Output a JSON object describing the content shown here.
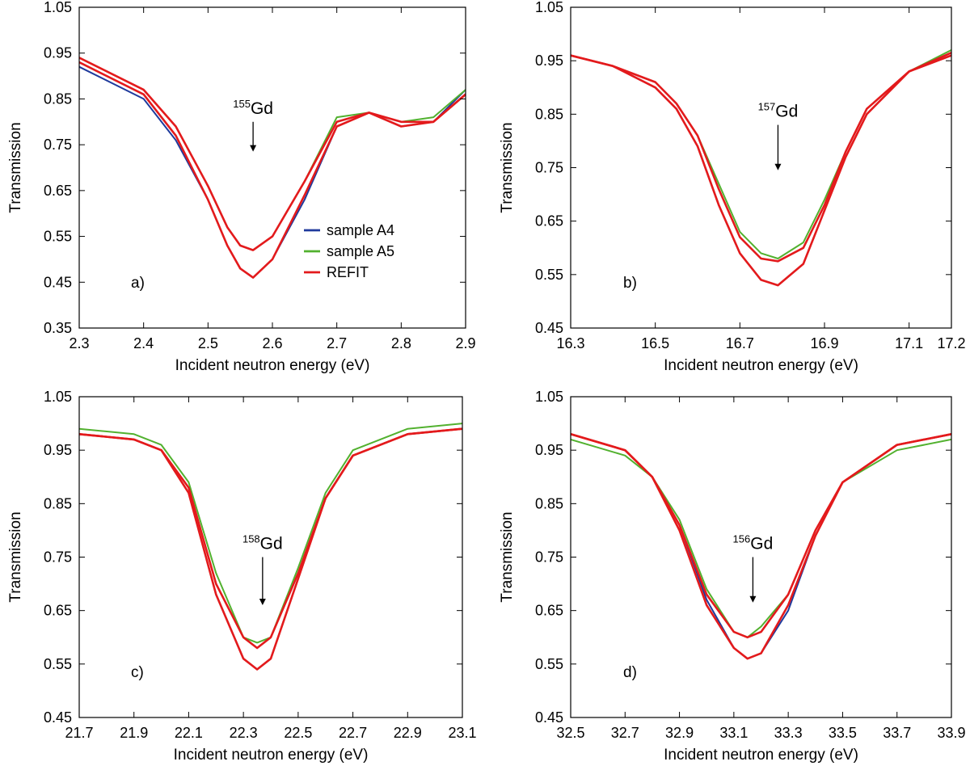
{
  "colors": {
    "a4": "#1f3a9c",
    "a5": "#52b12f",
    "refit": "#e31a1c",
    "axis": "#000000"
  },
  "legend": {
    "items": [
      {
        "label": "sample A4",
        "color": "#1f3a9c"
      },
      {
        "label": "sample A5",
        "color": "#52b12f"
      },
      {
        "label": "REFIT",
        "color": "#e31a1c"
      }
    ]
  },
  "chart_data": [
    {
      "type": "line",
      "panel_label": "a)",
      "xlabel": "Incident neutron energy (eV)",
      "ylabel": "Transmission",
      "xlim": [
        2.3,
        2.9
      ],
      "ylim": [
        0.35,
        1.05
      ],
      "xticks": [
        "2.3",
        "2.4",
        "2.5",
        "2.6",
        "2.7",
        "2.8",
        "2.9"
      ],
      "yticks": [
        "0.35",
        "0.45",
        "0.55",
        "0.65",
        "0.75",
        "0.85",
        "0.95",
        "1.05"
      ],
      "annotation": {
        "mass": "155",
        "element": "Gd",
        "x": 2.57,
        "y_top": 0.8,
        "y_bottom": 0.735
      },
      "legend": true,
      "series": [
        {
          "name": "sample A4",
          "x": [
            2.3,
            2.4,
            2.45,
            2.5,
            2.53,
            2.55,
            2.57,
            2.6,
            2.65,
            2.7,
            2.75,
            2.8,
            2.85,
            2.9
          ],
          "y": [
            0.92,
            0.85,
            0.76,
            0.63,
            0.53,
            0.48,
            0.46,
            0.5,
            0.63,
            0.79,
            0.82,
            0.79,
            0.8,
            0.87
          ]
        },
        {
          "name": "sample A5",
          "x": [
            2.3,
            2.4,
            2.45,
            2.5,
            2.53,
            2.55,
            2.57,
            2.6,
            2.65,
            2.7,
            2.75,
            2.8,
            2.85,
            2.9
          ],
          "y": [
            0.94,
            0.87,
            0.79,
            0.66,
            0.57,
            0.53,
            0.52,
            0.55,
            0.67,
            0.81,
            0.82,
            0.8,
            0.81,
            0.87
          ]
        },
        {
          "name": "REFIT",
          "x": [
            2.3,
            2.4,
            2.45,
            2.5,
            2.53,
            2.55,
            2.57,
            2.6,
            2.65,
            2.7,
            2.75,
            2.8,
            2.85,
            2.9
          ],
          "y": [
            0.93,
            0.86,
            0.77,
            0.63,
            0.53,
            0.48,
            0.46,
            0.5,
            0.64,
            0.79,
            0.82,
            0.79,
            0.8,
            0.86
          ]
        },
        {
          "name": "REFIT",
          "x": [
            2.3,
            2.4,
            2.45,
            2.5,
            2.53,
            2.55,
            2.57,
            2.6,
            2.65,
            2.7,
            2.75,
            2.8,
            2.85,
            2.9
          ],
          "y": [
            0.94,
            0.87,
            0.79,
            0.66,
            0.57,
            0.53,
            0.52,
            0.55,
            0.67,
            0.8,
            0.82,
            0.8,
            0.8,
            0.86
          ]
        }
      ]
    },
    {
      "type": "line",
      "panel_label": "b)",
      "xlabel": "Incident neutron energy (eV)",
      "ylabel": "Transmission",
      "xlim": [
        16.3,
        17.2
      ],
      "ylim": [
        0.45,
        1.05
      ],
      "xticks": [
        "16.3",
        "16.5",
        "16.7",
        "16.9",
        "17.1",
        "17.2"
      ],
      "yticks": [
        "0.45",
        "0.55",
        "0.65",
        "0.75",
        "0.85",
        "0.95",
        "1.05"
      ],
      "annotation": {
        "mass": "157",
        "element": "Gd",
        "x": 16.79,
        "y_top": 0.83,
        "y_bottom": 0.745
      },
      "legend": false,
      "series": [
        {
          "name": "sample A4",
          "x": [
            16.3,
            16.4,
            16.5,
            16.55,
            16.6,
            16.65,
            16.7,
            16.75,
            16.79,
            16.85,
            16.9,
            16.95,
            17.0,
            17.1,
            17.2
          ],
          "y": [
            0.96,
            0.94,
            0.9,
            0.86,
            0.79,
            0.68,
            0.59,
            0.54,
            0.53,
            0.57,
            0.67,
            0.77,
            0.85,
            0.93,
            0.96
          ]
        },
        {
          "name": "sample A5",
          "x": [
            16.3,
            16.4,
            16.5,
            16.55,
            16.6,
            16.65,
            16.7,
            16.75,
            16.79,
            16.85,
            16.9,
            16.95,
            17.0,
            17.1,
            17.2
          ],
          "y": [
            0.96,
            0.94,
            0.91,
            0.87,
            0.81,
            0.72,
            0.63,
            0.59,
            0.58,
            0.61,
            0.69,
            0.78,
            0.86,
            0.93,
            0.97
          ]
        },
        {
          "name": "REFIT",
          "x": [
            16.3,
            16.4,
            16.5,
            16.55,
            16.6,
            16.65,
            16.7,
            16.75,
            16.79,
            16.85,
            16.9,
            16.95,
            17.0,
            17.1,
            17.2
          ],
          "y": [
            0.96,
            0.94,
            0.9,
            0.86,
            0.79,
            0.68,
            0.59,
            0.54,
            0.53,
            0.57,
            0.67,
            0.77,
            0.85,
            0.93,
            0.96
          ]
        },
        {
          "name": "REFIT",
          "x": [
            16.3,
            16.4,
            16.5,
            16.55,
            16.6,
            16.65,
            16.7,
            16.75,
            16.79,
            16.85,
            16.9,
            16.95,
            17.0,
            17.1,
            17.2
          ],
          "y": [
            0.96,
            0.94,
            0.91,
            0.87,
            0.81,
            0.71,
            0.62,
            0.58,
            0.575,
            0.6,
            0.68,
            0.78,
            0.86,
            0.93,
            0.965
          ]
        }
      ]
    },
    {
      "type": "line",
      "panel_label": "c)",
      "xlabel": "Incident neutron energy (eV)",
      "ylabel": "Transmission",
      "xlim": [
        21.7,
        23.1
      ],
      "ylim": [
        0.45,
        1.05
      ],
      "xticks": [
        "21.7",
        "21.9",
        "22.1",
        "22.3",
        "22.5",
        "22.7",
        "22.9",
        "23.1"
      ],
      "yticks": [
        "0.45",
        "0.55",
        "0.65",
        "0.75",
        "0.85",
        "0.95",
        "1.05"
      ],
      "annotation": {
        "mass": "158",
        "element": "Gd",
        "x": 22.37,
        "y_top": 0.75,
        "y_bottom": 0.66
      },
      "legend": false,
      "series": [
        {
          "name": "sample A4",
          "x": [
            21.7,
            21.9,
            22.0,
            22.1,
            22.2,
            22.3,
            22.35,
            22.4,
            22.5,
            22.6,
            22.7,
            22.9,
            23.1
          ],
          "y": [
            0.98,
            0.97,
            0.95,
            0.87,
            0.68,
            0.56,
            0.54,
            0.56,
            0.71,
            0.86,
            0.94,
            0.98,
            0.99
          ]
        },
        {
          "name": "sample A5",
          "x": [
            21.7,
            21.9,
            22.0,
            22.1,
            22.2,
            22.3,
            22.35,
            22.4,
            22.5,
            22.6,
            22.7,
            22.9,
            23.1
          ],
          "y": [
            0.99,
            0.98,
            0.96,
            0.89,
            0.72,
            0.6,
            0.59,
            0.6,
            0.73,
            0.87,
            0.95,
            0.99,
            1.0
          ]
        },
        {
          "name": "REFIT",
          "x": [
            21.7,
            21.9,
            22.0,
            22.1,
            22.2,
            22.3,
            22.35,
            22.4,
            22.5,
            22.6,
            22.7,
            22.9,
            23.1
          ],
          "y": [
            0.98,
            0.97,
            0.95,
            0.87,
            0.68,
            0.56,
            0.54,
            0.56,
            0.71,
            0.86,
            0.94,
            0.98,
            0.99
          ]
        },
        {
          "name": "REFIT",
          "x": [
            21.7,
            21.9,
            22.0,
            22.1,
            22.2,
            22.3,
            22.35,
            22.4,
            22.5,
            22.6,
            22.7,
            22.9,
            23.1
          ],
          "y": [
            0.98,
            0.97,
            0.95,
            0.88,
            0.7,
            0.6,
            0.58,
            0.6,
            0.72,
            0.86,
            0.94,
            0.98,
            0.99
          ]
        }
      ]
    },
    {
      "type": "line",
      "panel_label": "d)",
      "xlabel": "Incident neutron energy (eV)",
      "ylabel": "Transmission",
      "xlim": [
        32.5,
        33.9
      ],
      "ylim": [
        0.45,
        1.05
      ],
      "xticks": [
        "32.5",
        "32.7",
        "32.9",
        "33.1",
        "33.3",
        "33.5",
        "33.7",
        "33.9"
      ],
      "yticks": [
        "0.45",
        "0.55",
        "0.65",
        "0.75",
        "0.85",
        "0.95",
        "1.05"
      ],
      "annotation": {
        "mass": "156",
        "element": "Gd",
        "x": 33.17,
        "y_top": 0.75,
        "y_bottom": 0.665
      },
      "legend": false,
      "series": [
        {
          "name": "sample A4",
          "x": [
            32.5,
            32.7,
            32.8,
            32.9,
            33.0,
            33.1,
            33.15,
            33.2,
            33.3,
            33.4,
            33.5,
            33.7,
            33.9
          ],
          "y": [
            0.98,
            0.95,
            0.9,
            0.81,
            0.67,
            0.58,
            0.56,
            0.57,
            0.65,
            0.79,
            0.89,
            0.96,
            0.98
          ]
        },
        {
          "name": "sample A5",
          "x": [
            32.5,
            32.7,
            32.8,
            32.9,
            33.0,
            33.1,
            33.15,
            33.2,
            33.3,
            33.4,
            33.5,
            33.7,
            33.9
          ],
          "y": [
            0.97,
            0.94,
            0.9,
            0.82,
            0.69,
            0.61,
            0.6,
            0.62,
            0.68,
            0.8,
            0.89,
            0.95,
            0.97
          ]
        },
        {
          "name": "REFIT",
          "x": [
            32.5,
            32.7,
            32.8,
            32.9,
            33.0,
            33.1,
            33.15,
            33.2,
            33.3,
            33.4,
            33.5,
            33.7,
            33.9
          ],
          "y": [
            0.98,
            0.95,
            0.9,
            0.8,
            0.66,
            0.58,
            0.56,
            0.57,
            0.66,
            0.79,
            0.89,
            0.96,
            0.98
          ]
        },
        {
          "name": "REFIT",
          "x": [
            32.5,
            32.7,
            32.8,
            32.9,
            33.0,
            33.1,
            33.15,
            33.2,
            33.3,
            33.4,
            33.5,
            33.7,
            33.9
          ],
          "y": [
            0.98,
            0.95,
            0.9,
            0.81,
            0.68,
            0.61,
            0.6,
            0.61,
            0.68,
            0.8,
            0.89,
            0.96,
            0.98
          ]
        }
      ]
    }
  ]
}
